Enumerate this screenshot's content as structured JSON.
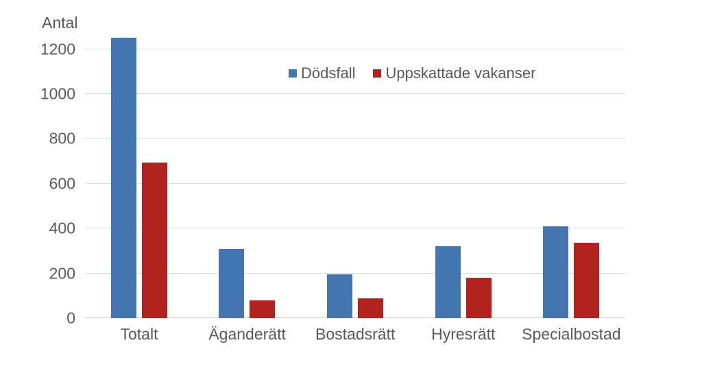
{
  "chart_data": {
    "type": "bar",
    "axis_title": "Antal",
    "categories": [
      "Totalt",
      "Äganderätt",
      "Bostadsrätt",
      "Hyresrätt",
      "Specialbostad"
    ],
    "series": [
      {
        "name": "Dödsfall",
        "color": "#4375B0",
        "values": [
          1250,
          310,
          195,
          320,
          410
        ]
      },
      {
        "name": "Uppskattade vakanser",
        "color": "#B2231D",
        "values": [
          695,
          80,
          90,
          180,
          335
        ]
      }
    ],
    "ylim": [
      0,
      1200
    ],
    "ytick_step": 200,
    "yticks": [
      0,
      200,
      400,
      600,
      800,
      1000,
      1200
    ],
    "grid": "horizontal",
    "gridline_color": "#dcdcdc",
    "axis_line_color": "#bfbfbf",
    "text_color": "#595959",
    "legend_position": "top-center-inside"
  }
}
